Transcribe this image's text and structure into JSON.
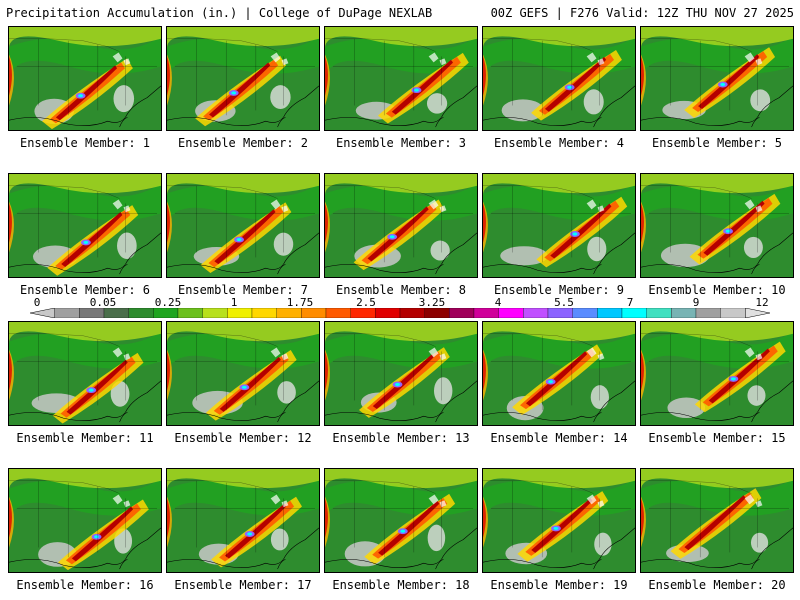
{
  "header": {
    "left_title": "Precipitation Accumulation (in.) | College of DuPage NEXLAB",
    "right_title": "00Z GEFS | F276 Valid: 12Z THU NOV 27 2025"
  },
  "members": [
    {
      "label": "Ensemble Member: 1"
    },
    {
      "label": "Ensemble Member: 2"
    },
    {
      "label": "Ensemble Member: 3"
    },
    {
      "label": "Ensemble Member: 4"
    },
    {
      "label": "Ensemble Member: 5"
    },
    {
      "label": "Ensemble Member: 6"
    },
    {
      "label": "Ensemble Member: 7"
    },
    {
      "label": "Ensemble Member: 8"
    },
    {
      "label": "Ensemble Member: 9"
    },
    {
      "label": "Ensemble Member: 10"
    },
    {
      "label": "Ensemble Member: 11"
    },
    {
      "label": "Ensemble Member: 12"
    },
    {
      "label": "Ensemble Member: 13"
    },
    {
      "label": "Ensemble Member: 14"
    },
    {
      "label": "Ensemble Member: 15"
    },
    {
      "label": "Ensemble Member: 16"
    },
    {
      "label": "Ensemble Member: 17"
    },
    {
      "label": "Ensemble Member: 18"
    },
    {
      "label": "Ensemble Member: 19"
    },
    {
      "label": "Ensemble Member: 20"
    }
  ],
  "colorbar": {
    "tick_labels": [
      "0",
      "0.05",
      "0.25",
      "1",
      "1.75",
      "2.5",
      "3.25",
      "4",
      "5.5",
      "7",
      "9",
      "12"
    ],
    "colors": [
      "#c8c8c8",
      "#a0a0a0",
      "#787878",
      "#4a6e4a",
      "#2e8c2e",
      "#1fa51f",
      "#6cc01c",
      "#b8e01c",
      "#f0f000",
      "#ffd700",
      "#ffb000",
      "#ff8c00",
      "#ff5a00",
      "#ff2800",
      "#e00000",
      "#b40000",
      "#8c0000",
      "#a0005a",
      "#d0009a",
      "#ff00ff",
      "#c050ff",
      "#8c64ff",
      "#5a8cff",
      "#00c8ff",
      "#00ffff",
      "#40e0c0",
      "#78b4b4",
      "#a0a0a0",
      "#c8c8c8",
      "#e0e0e0"
    ]
  }
}
